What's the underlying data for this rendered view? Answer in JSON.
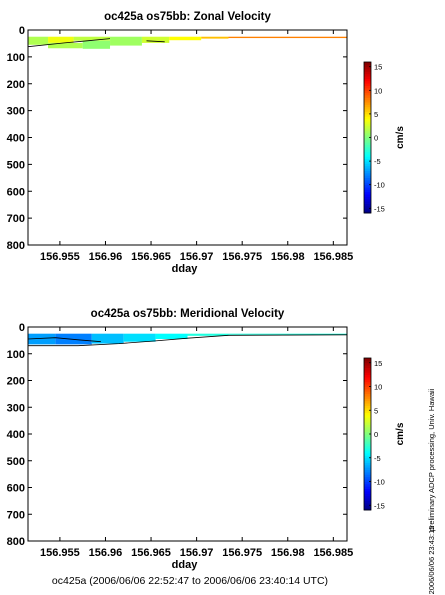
{
  "footer": "oc425a (2006/06/06 22:52:47 to 2006/06/06 23:40:14 UTC)",
  "side_note": "preliminary ADCP processing,  Univ. Hawaii",
  "timestamp": "2006/06/06 23:43:15",
  "chart_data": [
    {
      "type": "heatmap",
      "title": "oc425a os75bb: Zonal Velocity",
      "xlabel": "dday",
      "ylabel": "",
      "xlim": [
        156.9515,
        156.9865
      ],
      "ylim": [
        800,
        0
      ],
      "y_inverted": true,
      "xticks": [
        156.955,
        156.96,
        156.965,
        156.97,
        156.975,
        156.98,
        156.985
      ],
      "xtick_labels": [
        "156.955",
        "156.96",
        "156.965",
        "156.97",
        "156.975",
        "156.98",
        "156.985"
      ],
      "yticks": [
        0,
        100,
        200,
        300,
        400,
        500,
        600,
        700,
        800
      ],
      "ytick_labels": [
        "0",
        "100",
        "200",
        "300",
        "400",
        "500",
        "600",
        "700",
        "800"
      ],
      "colorbar": {
        "label": "cm/s",
        "range": [
          -16,
          16
        ],
        "ticks": [
          15,
          10,
          5,
          0,
          -5,
          -10,
          -15
        ],
        "tick_labels": [
          "15",
          "10",
          "5",
          "0",
          "-5",
          "-10",
          "-15"
        ],
        "colormap": "jet"
      },
      "regions": [
        {
          "x": [
            156.9515,
            156.9537
          ],
          "depth": [
            25,
            55
          ],
          "value": 1.5
        },
        {
          "x": [
            156.9537,
            156.9565
          ],
          "depth": [
            25,
            48
          ],
          "value": 3.5
        },
        {
          "x": [
            156.9537,
            156.9575
          ],
          "depth": [
            48,
            68
          ],
          "value": 1.5
        },
        {
          "x": [
            156.9565,
            156.9605
          ],
          "depth": [
            25,
            40
          ],
          "value": 2
        },
        {
          "x": [
            156.9575,
            156.9605
          ],
          "depth": [
            40,
            70
          ],
          "value": 0.5
        },
        {
          "x": [
            156.9605,
            156.964
          ],
          "depth": [
            25,
            58
          ],
          "value": 1
        },
        {
          "x": [
            156.964,
            156.967
          ],
          "depth": [
            25,
            48
          ],
          "value": 2.5
        },
        {
          "x": [
            156.967,
            156.9705
          ],
          "depth": [
            25,
            38
          ],
          "value": 4
        },
        {
          "x": [
            156.9705,
            156.9735
          ],
          "depth": [
            25,
            32
          ],
          "value": 6
        },
        {
          "x": [
            156.9735,
            156.9865
          ],
          "depth": [
            25,
            30
          ],
          "value": 8
        }
      ],
      "contour_marks": [
        {
          "x": [
            156.9515,
            156.9555,
            156.958,
            156.9605
          ],
          "depth": [
            62,
            48,
            40,
            32
          ]
        },
        {
          "x": [
            156.9645,
            156.9665
          ],
          "depth": [
            40,
            44
          ]
        }
      ]
    },
    {
      "type": "heatmap",
      "title": "oc425a os75bb: Meridional Velocity",
      "xlabel": "dday",
      "ylabel": "",
      "xlim": [
        156.9515,
        156.9865
      ],
      "ylim": [
        800,
        0
      ],
      "y_inverted": true,
      "xticks": [
        156.955,
        156.96,
        156.965,
        156.97,
        156.975,
        156.98,
        156.985
      ],
      "xtick_labels": [
        "156.955",
        "156.96",
        "156.965",
        "156.97",
        "156.975",
        "156.98",
        "156.985"
      ],
      "yticks": [
        0,
        100,
        200,
        300,
        400,
        500,
        600,
        700,
        800
      ],
      "ytick_labels": [
        "0",
        "100",
        "200",
        "300",
        "400",
        "500",
        "600",
        "700",
        "800"
      ],
      "colorbar": {
        "label": "cm/s",
        "range": [
          -16,
          16
        ],
        "ticks": [
          15,
          10,
          5,
          0,
          -5,
          -10,
          -15
        ],
        "tick_labels": [
          "15",
          "10",
          "5",
          "0",
          "-5",
          "-10",
          "-15"
        ],
        "colormap": "jet"
      },
      "regions": [
        {
          "x": [
            156.9515,
            156.9545
          ],
          "depth": [
            25,
            65
          ],
          "value": -7
        },
        {
          "x": [
            156.9545,
            156.9585
          ],
          "depth": [
            25,
            65
          ],
          "value": -8
        },
        {
          "x": [
            156.9585,
            156.962
          ],
          "depth": [
            25,
            62
          ],
          "value": -6
        },
        {
          "x": [
            156.962,
            156.9655
          ],
          "depth": [
            25,
            55
          ],
          "value": -5
        },
        {
          "x": [
            156.9655,
            156.969
          ],
          "depth": [
            25,
            45
          ],
          "value": -4
        },
        {
          "x": [
            156.969,
            156.9735
          ],
          "depth": [
            25,
            33
          ],
          "value": -3
        },
        {
          "x": [
            156.9735,
            156.9865
          ],
          "depth": [
            25,
            29
          ],
          "value": -3
        }
      ],
      "contour_marks": [
        {
          "x": [
            156.9515,
            156.9545,
            156.957,
            156.9595
          ],
          "depth": [
            45,
            40,
            48,
            55
          ]
        },
        {
          "x": [
            156.9515,
            156.957,
            156.9615,
            156.9655,
            156.969,
            156.9735,
            156.9865
          ],
          "depth": [
            70,
            70,
            62,
            52,
            42,
            31,
            29
          ]
        }
      ]
    }
  ]
}
